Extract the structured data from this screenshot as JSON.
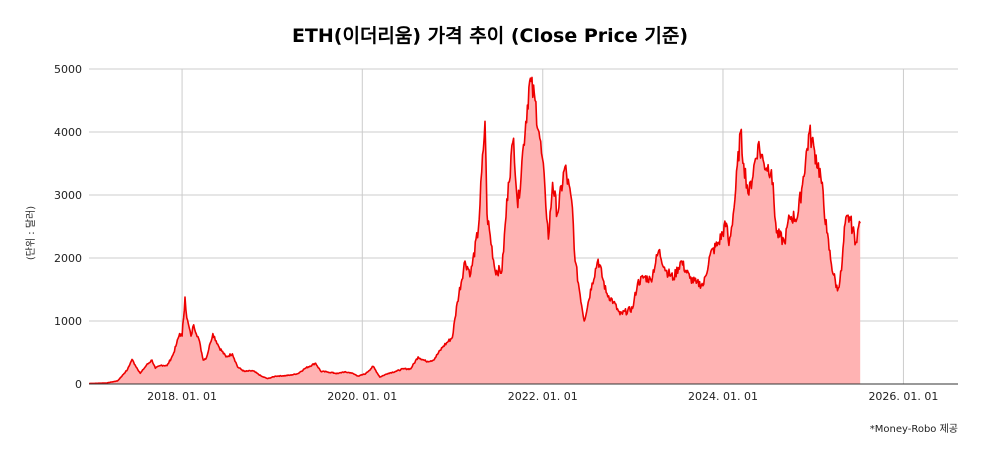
{
  "chart_data": {
    "type": "area",
    "title": "ETH(이더리움) 가격 추이 (Close Price  기준)",
    "ylabel": "(단위 : 달러)",
    "xlabel": "",
    "ylim": [
      0,
      5000
    ],
    "yticks": [
      "0",
      "1000",
      "2000",
      "3000",
      "4000",
      "5000"
    ],
    "xlim": [
      "2016-12-20",
      "2026-08-10"
    ],
    "xticks": [
      {
        "date": "2018-01-01",
        "label": "2018. 01. 01"
      },
      {
        "date": "2020-01-01",
        "label": "2020. 01. 01"
      },
      {
        "date": "2022-01-01",
        "label": "2022. 01. 01"
      },
      {
        "date": "2024-01-01",
        "label": "2024. 01. 01"
      },
      {
        "date": "2026-01-01",
        "label": "2026. 01. 01"
      }
    ],
    "grid": true,
    "colors": {
      "line": "#ee0000",
      "fill": "#ffb3b3",
      "grid": "#cccccc",
      "axis": "#333333"
    },
    "points": [
      [
        "2016-12-20",
        8
      ],
      [
        "2017-03-01",
        16
      ],
      [
        "2017-04-15",
        50
      ],
      [
        "2017-05-25",
        230
      ],
      [
        "2017-06-12",
        390
      ],
      [
        "2017-06-25",
        300
      ],
      [
        "2017-07-16",
        170
      ],
      [
        "2017-08-10",
        300
      ],
      [
        "2017-09-01",
        380
      ],
      [
        "2017-09-15",
        250
      ],
      [
        "2017-10-10",
        300
      ],
      [
        "2017-11-01",
        290
      ],
      [
        "2017-11-25",
        460
      ],
      [
        "2017-12-10",
        640
      ],
      [
        "2017-12-22",
        800
      ],
      [
        "2018-01-01",
        760
      ],
      [
        "2018-01-13",
        1380
      ],
      [
        "2018-01-20",
        1050
      ],
      [
        "2018-02-06",
        760
      ],
      [
        "2018-02-17",
        940
      ],
      [
        "2018-03-10",
        710
      ],
      [
        "2018-03-28",
        380
      ],
      [
        "2018-04-10",
        420
      ],
      [
        "2018-04-25",
        650
      ],
      [
        "2018-05-06",
        800
      ],
      [
        "2018-06-01",
        580
      ],
      [
        "2018-06-28",
        430
      ],
      [
        "2018-07-24",
        480
      ],
      [
        "2018-08-14",
        270
      ],
      [
        "2018-09-10",
        200
      ],
      [
        "2018-10-15",
        210
      ],
      [
        "2018-11-20",
        120
      ],
      [
        "2018-12-14",
        85
      ],
      [
        "2019-01-15",
        125
      ],
      [
        "2019-02-15",
        130
      ],
      [
        "2019-03-15",
        140
      ],
      [
        "2019-04-15",
        165
      ],
      [
        "2019-05-15",
        250
      ],
      [
        "2019-06-26",
        330
      ],
      [
        "2019-07-17",
        200
      ],
      [
        "2019-08-15",
        190
      ],
      [
        "2019-09-24",
        165
      ],
      [
        "2019-10-15",
        190
      ],
      [
        "2019-11-15",
        180
      ],
      [
        "2019-12-17",
        125
      ],
      [
        "2020-01-15",
        165
      ],
      [
        "2020-02-14",
        280
      ],
      [
        "2020-03-12",
        110
      ],
      [
        "2020-04-15",
        170
      ],
      [
        "2020-05-15",
        200
      ],
      [
        "2020-06-15",
        240
      ],
      [
        "2020-07-15",
        240
      ],
      [
        "2020-08-14",
        430
      ],
      [
        "2020-09-15",
        360
      ],
      [
        "2020-10-15",
        380
      ],
      [
        "2020-11-24",
        600
      ],
      [
        "2020-12-31",
        740
      ],
      [
        "2021-01-20",
        1300
      ],
      [
        "2021-02-20",
        1950
      ],
      [
        "2021-03-15",
        1750
      ],
      [
        "2021-04-15",
        2450
      ],
      [
        "2021-05-12",
        4170
      ],
      [
        "2021-05-20",
        2700
      ],
      [
        "2021-06-22",
        1800
      ],
      [
        "2021-07-20",
        1800
      ],
      [
        "2021-08-15",
        3200
      ],
      [
        "2021-09-05",
        3900
      ],
      [
        "2021-09-22",
        2800
      ],
      [
        "2021-10-15",
        3800
      ],
      [
        "2021-11-09",
        4810
      ],
      [
        "2021-12-01",
        4500
      ],
      [
        "2021-12-20",
        3900
      ],
      [
        "2022-01-10",
        3100
      ],
      [
        "2022-01-24",
        2300
      ],
      [
        "2022-02-10",
        3200
      ],
      [
        "2022-03-01",
        2700
      ],
      [
        "2022-04-01",
        3450
      ],
      [
        "2022-05-01",
        2800
      ],
      [
        "2022-05-12",
        1950
      ],
      [
        "2022-06-18",
        1000
      ],
      [
        "2022-07-20",
        1600
      ],
      [
        "2022-08-13",
        1980
      ],
      [
        "2022-09-15",
        1450
      ],
      [
        "2022-10-15",
        1300
      ],
      [
        "2022-11-10",
        1100
      ],
      [
        "2022-12-31",
        1200
      ],
      [
        "2023-01-20",
        1600
      ],
      [
        "2023-02-15",
        1700
      ],
      [
        "2023-03-15",
        1650
      ],
      [
        "2023-04-16",
        2120
      ],
      [
        "2023-05-15",
        1800
      ],
      [
        "2023-06-15",
        1680
      ],
      [
        "2023-07-15",
        1950
      ],
      [
        "2023-08-20",
        1680
      ],
      [
        "2023-09-15",
        1600
      ],
      [
        "2023-10-15",
        1580
      ],
      [
        "2023-11-10",
        2050
      ],
      [
        "2023-12-15",
        2250
      ],
      [
        "2024-01-15",
        2550
      ],
      [
        "2024-01-25",
        2200
      ],
      [
        "2024-02-15",
        2800
      ],
      [
        "2024-03-12",
        4000
      ],
      [
        "2024-03-25",
        3500
      ],
      [
        "2024-04-15",
        3000
      ],
      [
        "2024-05-22",
        3800
      ],
      [
        "2024-06-15",
        3500
      ],
      [
        "2024-07-15",
        3400
      ],
      [
        "2024-08-05",
        2400
      ],
      [
        "2024-09-06",
        2250
      ],
      [
        "2024-09-27",
        2650
      ],
      [
        "2024-10-29",
        2650
      ],
      [
        "2024-11-15",
        3100
      ],
      [
        "2024-12-16",
        4000
      ],
      [
        "2025-01-06",
        3700
      ],
      [
        "2025-01-31",
        3300
      ],
      [
        "2025-02-25",
        2400
      ],
      [
        "2025-03-15",
        1900
      ],
      [
        "2025-04-09",
        1480
      ],
      [
        "2025-04-25",
        1800
      ],
      [
        "2025-05-10",
        2550
      ],
      [
        "2025-05-28",
        2650
      ],
      [
        "2025-06-22",
        2250
      ],
      [
        "2025-06-30",
        2450
      ],
      [
        "2025-07-10",
        2550
      ]
    ]
  },
  "footer": {
    "credit": "*Money-Robo 제공"
  }
}
